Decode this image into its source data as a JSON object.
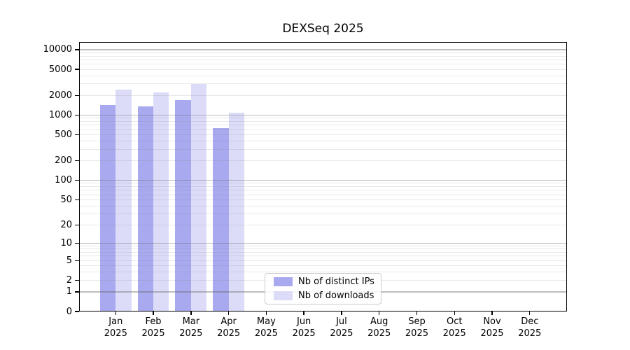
{
  "chart_data": {
    "type": "bar",
    "title": "DEXSeq 2025",
    "x_year": "2025",
    "categories": [
      "Jan",
      "Feb",
      "Mar",
      "Apr",
      "May",
      "Jun",
      "Jul",
      "Aug",
      "Sep",
      "Oct",
      "Nov",
      "Dec"
    ],
    "series": [
      {
        "name": "Nb of distinct IPs",
        "color": "#a9a9f0",
        "values": [
          1440,
          1350,
          1680,
          640,
          null,
          null,
          null,
          null,
          null,
          null,
          null,
          null
        ]
      },
      {
        "name": "Nb of downloads",
        "color": "#dcdcf8",
        "values": [
          2450,
          2220,
          2970,
          1095,
          null,
          null,
          null,
          null,
          null,
          null,
          null,
          null
        ]
      }
    ],
    "y_ticks": [
      10000,
      5000,
      2000,
      1000,
      500,
      200,
      100,
      50,
      20,
      10,
      5,
      2,
      1,
      0
    ],
    "y_scale": "log10(value+1)",
    "ylim": [
      0,
      13000
    ],
    "grid": true,
    "legend_position": "lower center",
    "colors": {
      "major_grid": "#c2c2c2",
      "minor_grid": "#e8e8e8",
      "axis": "#000000",
      "text": "#000000",
      "background": "#ffffff"
    }
  }
}
